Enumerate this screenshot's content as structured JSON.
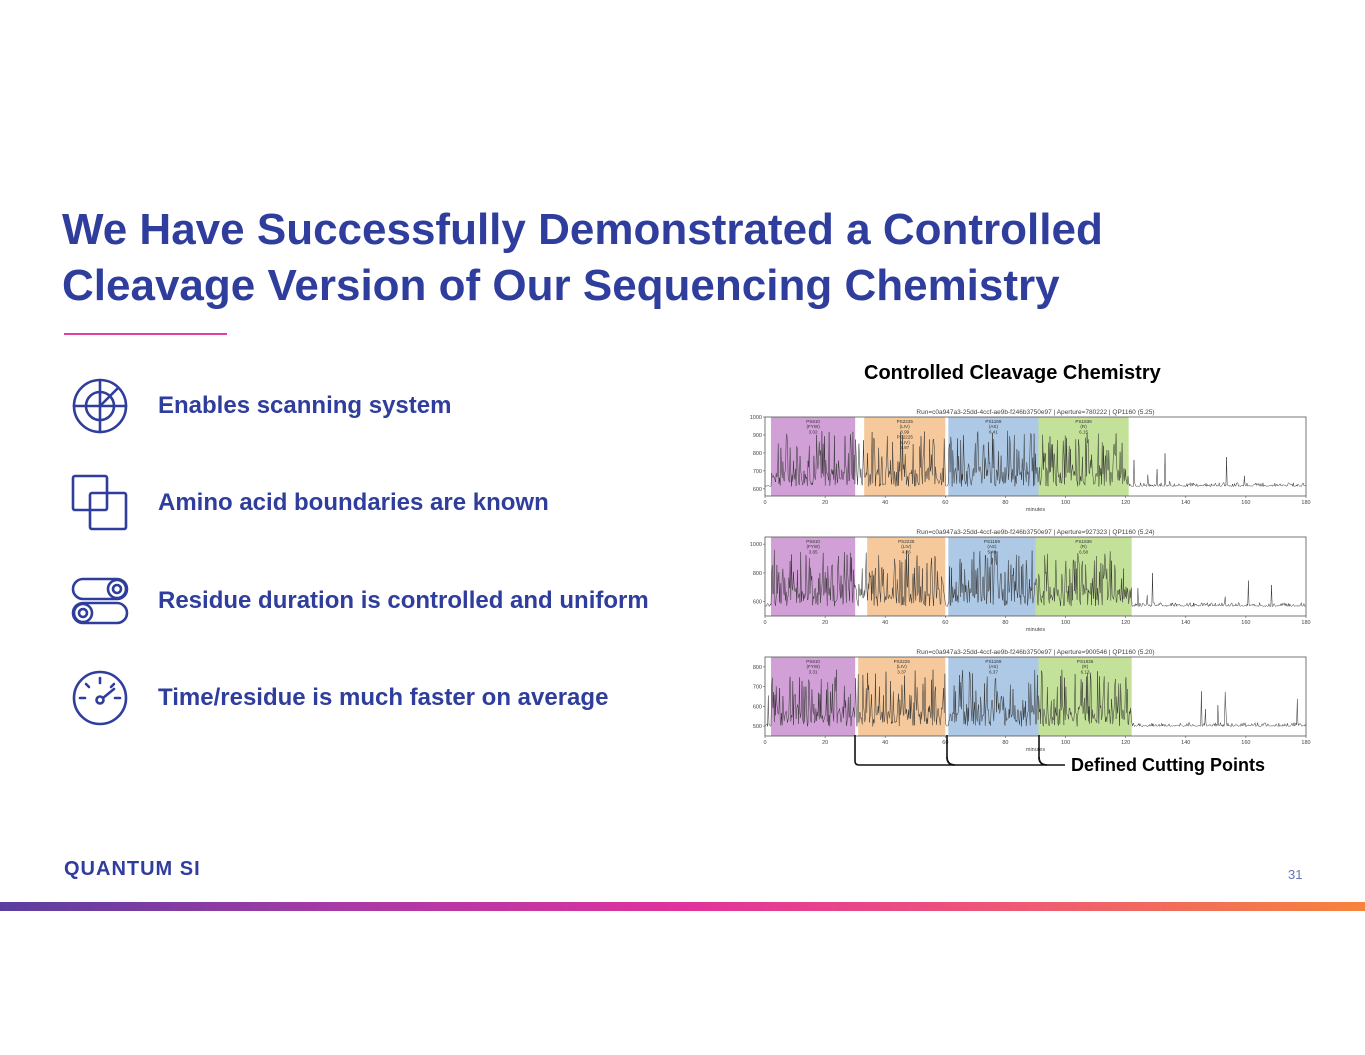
{
  "slide": {
    "title_lines": [
      "We Have Successfully Demonstrated a Controlled",
      "Cleavage Version of Our Sequencing Chemistry"
    ],
    "bullets": [
      {
        "icon": "radar-icon",
        "text": "Enables scanning system"
      },
      {
        "icon": "overlapping-squares-icon",
        "text": "Amino acid boundaries are known"
      },
      {
        "icon": "toggle-switches-icon",
        "text": "Residue duration is controlled and uniform"
      },
      {
        "icon": "speedometer-icon",
        "text": "Time/residue is much faster on average"
      }
    ],
    "figure_title": "Controlled Cleavage Chemistry",
    "cutting_points_label": "Defined Cutting Points",
    "logo_text": "QUANTUM SI",
    "page_number": "31",
    "colors": {
      "brand_blue": "#2f3d9c",
      "accent_pink": "#e0409f",
      "band_purple": "#c98fd0",
      "band_orange": "#f3c089",
      "band_blue": "#9fc0e2",
      "band_green": "#b8dc86"
    }
  },
  "chart_data": [
    {
      "type": "line",
      "title": "Run=c0a947a3-25dd-4ccf-ae9b-f246b3750e97 | Aperture=780222 | QP1160 (5.25)",
      "xlabel": "minutes",
      "xlim": [
        0,
        180
      ],
      "ylim": [
        560,
        1000
      ],
      "x_ticks": [
        0,
        20,
        40,
        60,
        80,
        100,
        120,
        140,
        160,
        180
      ],
      "y_ticks": [
        600,
        700,
        800,
        900,
        1000
      ],
      "bands": [
        {
          "start": 2,
          "end": 30,
          "color": "purple",
          "label": [
            "PS610",
            "(FYW)",
            "3.02"
          ]
        },
        {
          "start": 33,
          "end": 60,
          "color": "orange",
          "label": [
            "PS2225",
            "(LIV)",
            "3.99",
            "PS2225",
            "(LIV)",
            "3.97"
          ]
        },
        {
          "start": 61,
          "end": 91,
          "color": "blue",
          "label": [
            "PS1169",
            "(AS)",
            "6.41"
          ]
        },
        {
          "start": 91,
          "end": 121,
          "color": "green",
          "label": [
            "PS1836",
            "(R)",
            "6.15"
          ]
        }
      ]
    },
    {
      "type": "line",
      "title": "Run=c0a947a3-25dd-4ccf-ae9b-f246b3750e97 | Aperture=927323 | QP1160 (5.24)",
      "xlabel": "minutes",
      "xlim": [
        0,
        180
      ],
      "ylim": [
        500,
        1050
      ],
      "x_ticks": [
        0,
        20,
        40,
        60,
        80,
        100,
        120,
        140,
        160,
        180
      ],
      "y_ticks": [
        600,
        800,
        1000
      ],
      "bands": [
        {
          "start": 2,
          "end": 30,
          "color": "purple",
          "label": [
            "PS610",
            "(FYW)",
            "3.65"
          ]
        },
        {
          "start": 34,
          "end": 60,
          "color": "orange",
          "label": [
            "PS2225",
            "(LIV)",
            "4.06"
          ]
        },
        {
          "start": 61,
          "end": 90,
          "color": "blue",
          "label": [
            "PS1169",
            "(AS)",
            "5.48"
          ]
        },
        {
          "start": 90,
          "end": 122,
          "color": "green",
          "label": [
            "PS1836",
            "(R)",
            "6.58"
          ]
        }
      ]
    },
    {
      "type": "line",
      "title": "Run=c0a947a3-25dd-4ccf-ae9b-f246b3750e97 | Aperture=900546 | QP1160 (5.20)",
      "xlabel": "minutes",
      "xlim": [
        0,
        180
      ],
      "ylim": [
        450,
        850
      ],
      "x_ticks": [
        0,
        20,
        40,
        60,
        80,
        100,
        120,
        140,
        160,
        180
      ],
      "y_ticks": [
        500,
        600,
        700,
        800
      ],
      "bands": [
        {
          "start": 2,
          "end": 30,
          "color": "purple",
          "label": [
            "PS610",
            "(FYW)",
            "3.31"
          ]
        },
        {
          "start": 31,
          "end": 60,
          "color": "orange",
          "label": [
            "PS2225",
            "(LIV)",
            "3.37"
          ]
        },
        {
          "start": 61,
          "end": 91,
          "color": "blue",
          "label": [
            "PS1169",
            "(AS)",
            "6.37"
          ]
        },
        {
          "start": 91,
          "end": 122,
          "color": "green",
          "label": [
            "PS1836",
            "(R)",
            "6.13"
          ]
        }
      ]
    }
  ]
}
